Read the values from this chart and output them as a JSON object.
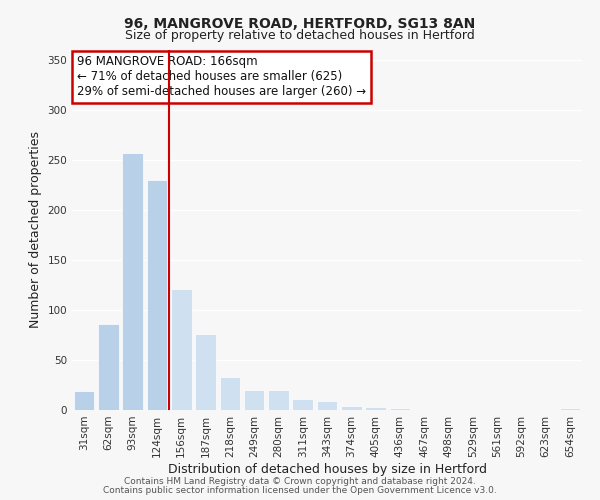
{
  "title": "96, MANGROVE ROAD, HERTFORD, SG13 8AN",
  "subtitle": "Size of property relative to detached houses in Hertford",
  "xlabel": "Distribution of detached houses by size in Hertford",
  "ylabel": "Number of detached properties",
  "categories": [
    "31sqm",
    "62sqm",
    "93sqm",
    "124sqm",
    "156sqm",
    "187sqm",
    "218sqm",
    "249sqm",
    "280sqm",
    "311sqm",
    "343sqm",
    "374sqm",
    "405sqm",
    "436sqm",
    "467sqm",
    "498sqm",
    "529sqm",
    "561sqm",
    "592sqm",
    "623sqm",
    "654sqm"
  ],
  "values": [
    19,
    86,
    257,
    230,
    121,
    76,
    33,
    20,
    20,
    11,
    9,
    4,
    3,
    2,
    1,
    1,
    0,
    0,
    0,
    0,
    2
  ],
  "bar_color_normal": "#b8d0e8",
  "bar_color_right": "#cfe0f0",
  "highlight_index": 4,
  "vline_x": 3.5,
  "annotation_title": "96 MANGROVE ROAD: 166sqm",
  "annotation_line1": "← 71% of detached houses are smaller (625)",
  "annotation_line2": "29% of semi-detached houses are larger (260) →",
  "annotation_box_color": "#ffffff",
  "annotation_box_edge": "#cc0000",
  "vline_color": "#cc0000",
  "ylim": [
    0,
    360
  ],
  "yticks": [
    0,
    50,
    100,
    150,
    200,
    250,
    300,
    350
  ],
  "footer1": "Contains HM Land Registry data © Crown copyright and database right 2024.",
  "footer2": "Contains public sector information licensed under the Open Government Licence v3.0.",
  "background_color": "#f7f7f7",
  "grid_color": "#ffffff",
  "title_fontsize": 10,
  "subtitle_fontsize": 9,
  "tick_fontsize": 7.5,
  "axis_label_fontsize": 9,
  "annotation_fontsize": 8.5,
  "footer_fontsize": 6.5
}
